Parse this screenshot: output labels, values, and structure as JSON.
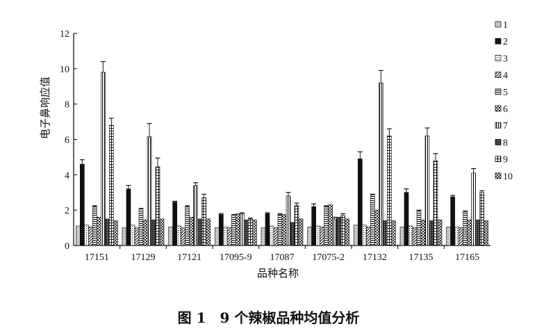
{
  "caption": "图 1　9 个辣椒品种均值分析",
  "chart_data": {
    "type": "bar",
    "xlabel": "品种名称",
    "ylabel": "电子鼻响应值",
    "ylim": [
      0,
      12
    ],
    "yticks": [
      "0",
      "2",
      "4",
      "6",
      "8",
      "10",
      "12"
    ],
    "categories": [
      "17151",
      "17129",
      "17121",
      "17095-9",
      "17087",
      "17075-2",
      "17132",
      "17135",
      "17165"
    ],
    "legend_position": "right",
    "series": [
      {
        "name": "1",
        "pattern": "light-gray",
        "values": [
          1.1,
          1.0,
          1.05,
          1.0,
          1.0,
          1.05,
          1.15,
          1.05,
          1.05
        ],
        "errors": [
          0,
          0,
          0,
          0,
          0,
          0,
          0,
          0,
          0
        ]
      },
      {
        "name": "2",
        "pattern": "black",
        "values": [
          4.6,
          3.2,
          2.45,
          1.75,
          1.8,
          2.2,
          4.9,
          3.0,
          2.75
        ],
        "errors": [
          0.25,
          0.2,
          0.05,
          0.05,
          0.05,
          0.15,
          0.4,
          0.2,
          0.08
        ]
      },
      {
        "name": "3",
        "pattern": "dots",
        "values": [
          1.15,
          1.15,
          1.1,
          1.05,
          1.1,
          1.1,
          1.15,
          1.1,
          1.05
        ],
        "errors": [
          0,
          0,
          0,
          0,
          0,
          0,
          0,
          0,
          0
        ]
      },
      {
        "name": "4",
        "pattern": "diag",
        "values": [
          1.05,
          1.0,
          1.0,
          1.0,
          1.0,
          1.05,
          1.05,
          1.0,
          1.0
        ],
        "errors": [
          0,
          0,
          0,
          0,
          0,
          0,
          0,
          0,
          0
        ]
      },
      {
        "name": "5",
        "pattern": "hlines",
        "values": [
          2.2,
          2.05,
          2.2,
          1.7,
          1.75,
          2.2,
          2.85,
          1.95,
          1.9
        ],
        "errors": [
          0.05,
          0.05,
          0.05,
          0.05,
          0.05,
          0.05,
          0.05,
          0.05,
          0.05
        ]
      },
      {
        "name": "6",
        "pattern": "checks",
        "values": [
          1.6,
          1.45,
          1.6,
          1.8,
          1.75,
          2.3,
          2.0,
          1.45,
          1.45
        ],
        "errors": [
          0,
          0,
          0,
          0,
          0,
          0,
          0,
          0,
          0
        ]
      },
      {
        "name": "7",
        "pattern": "vlines",
        "values": [
          9.8,
          6.15,
          3.4,
          1.8,
          2.8,
          1.5,
          9.2,
          6.2,
          4.1
        ],
        "errors": [
          0.6,
          0.75,
          0.15,
          0.05,
          0.2,
          0.1,
          0.7,
          0.45,
          0.25
        ]
      },
      {
        "name": "8",
        "pattern": "dark",
        "values": [
          1.5,
          1.45,
          1.5,
          1.45,
          1.3,
          1.6,
          1.4,
          1.4,
          1.45
        ],
        "errors": [
          0,
          0,
          0,
          0,
          0,
          0,
          0,
          0,
          0
        ]
      },
      {
        "name": "9",
        "pattern": "grid",
        "values": [
          6.8,
          4.45,
          2.7,
          1.5,
          2.25,
          1.7,
          6.2,
          4.8,
          3.0
        ],
        "errors": [
          0.4,
          0.5,
          0.2,
          0.05,
          0.15,
          0.1,
          0.4,
          0.4,
          0.1
        ]
      },
      {
        "name": "10",
        "pattern": "cross",
        "values": [
          1.4,
          1.5,
          1.5,
          1.45,
          1.5,
          1.5,
          1.4,
          1.45,
          1.4
        ],
        "errors": [
          0,
          0,
          0,
          0,
          0,
          0,
          0,
          0,
          0
        ]
      }
    ]
  }
}
